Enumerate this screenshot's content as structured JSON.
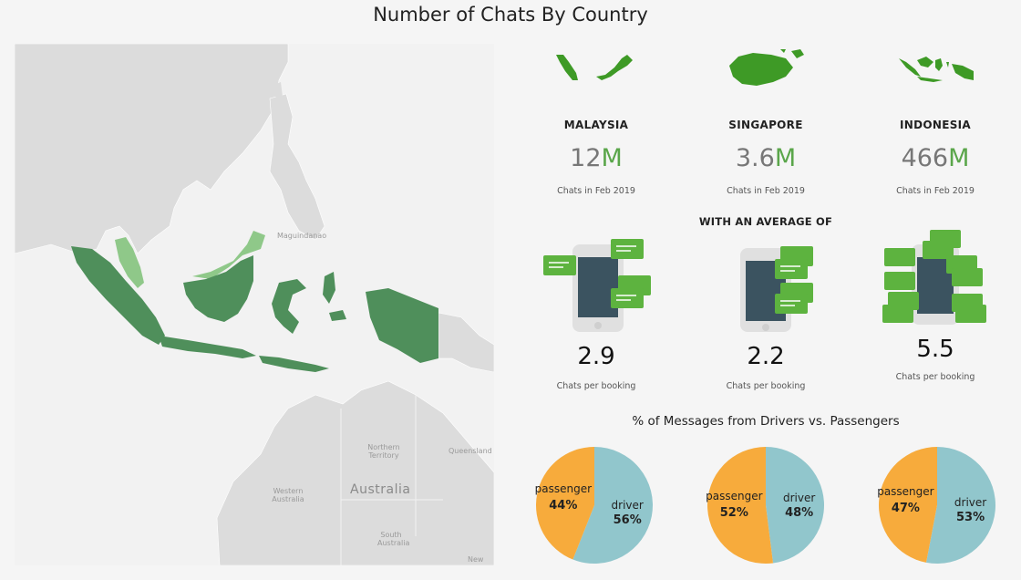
{
  "title": "Number of Chats By Country",
  "map": {
    "labels": {
      "magindanao": "Maguindanao",
      "australia": "Australia",
      "northern_territory_1": "Northern",
      "northern_territory_2": "Territory",
      "queensland": "Queensland",
      "western_australia_1": "Western",
      "western_australia_2": "Australia",
      "south_australia_1": "South",
      "south_australia_2": "Australia",
      "new": "New"
    },
    "colors": {
      "indonesia": "#4f8f5b",
      "malaysia": "#8fc889",
      "land": "#dcdcdc",
      "water": "#f2f2f2"
    }
  },
  "countries": [
    {
      "name": "MALAYSIA",
      "value": "12",
      "unit": "M",
      "caption": "Chats in Feb 2019",
      "avg": "2.9",
      "avg_caption": "Chats per booking"
    },
    {
      "name": "SINGAPORE",
      "value": "3.6",
      "unit": "M",
      "caption": "Chats in Feb 2019",
      "avg": "2.2",
      "avg_caption": "Chats per booking"
    },
    {
      "name": "INDONESIA",
      "value": "466",
      "unit": "M",
      "caption": "Chats in Feb 2019",
      "avg": "5.5",
      "avg_caption": "Chats per booking"
    }
  ],
  "avg_heading": "WITH AN AVERAGE OF",
  "colors": {
    "accent_green": "#5aa64a",
    "passenger": "#f7ab3c",
    "driver": "#91c6cc",
    "phone_screen": "#3b5360"
  },
  "chart_data": {
    "type": "pie",
    "title": "% of Messages from Drivers vs. Passengers",
    "pies": [
      {
        "country": "MALAYSIA",
        "slices": [
          {
            "label": "passenger",
            "value": 44,
            "text": "44%"
          },
          {
            "label": "driver",
            "value": 56,
            "text": "56%"
          }
        ]
      },
      {
        "country": "SINGAPORE",
        "slices": [
          {
            "label": "passenger",
            "value": 52,
            "text": "52%"
          },
          {
            "label": "driver",
            "value": 48,
            "text": "48%"
          }
        ]
      },
      {
        "country": "INDONESIA",
        "slices": [
          {
            "label": "passenger",
            "value": 47,
            "text": "47%"
          },
          {
            "label": "driver",
            "value": 53,
            "text": "53%"
          }
        ]
      }
    ]
  }
}
